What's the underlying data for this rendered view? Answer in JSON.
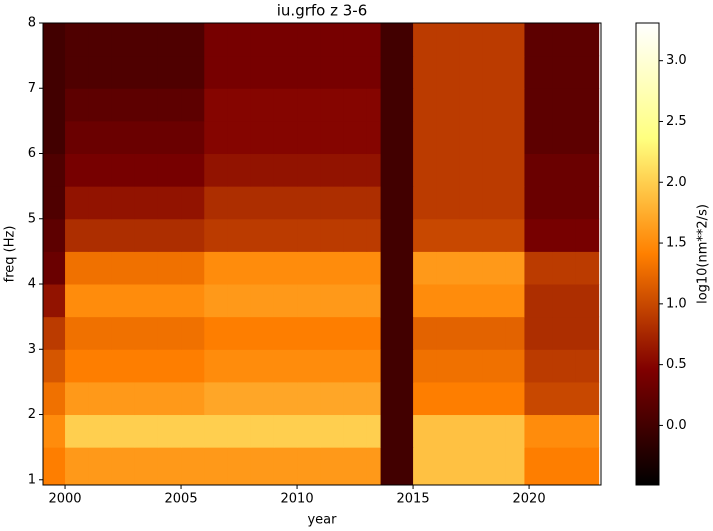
{
  "chart_data": {
    "type": "heatmap",
    "title": "iu.grfo z 3-6",
    "x_label": "year",
    "y_label": "freq (Hz)",
    "colorbar_label": "log10(nm**2/s)",
    "colormap": "afmhot",
    "x_edges": [
      1999,
      2000,
      2001,
      2002,
      2003,
      2004,
      2005,
      2006,
      2007,
      2008,
      2009,
      2010,
      2011,
      2012,
      2013,
      2013.6,
      2015,
      2016,
      2017,
      2018,
      2019,
      2019.8,
      2021,
      2022,
      2023
    ],
    "y_edges": [
      0.92,
      1.5,
      2,
      2.5,
      3,
      3.5,
      4,
      4.5,
      5,
      5.5,
      6,
      6.5,
      7,
      7.5,
      8
    ],
    "z": [
      [
        1.4,
        1.6,
        1.6,
        1.6,
        1.6,
        1.6,
        1.6,
        1.6,
        1.6,
        1.6,
        1.6,
        1.6,
        1.6,
        1.6,
        1.6,
        0.0,
        1.9,
        1.9,
        1.9,
        1.9,
        1.9,
        1.4,
        1.4,
        1.4
      ],
      [
        1.5,
        2.0,
        2.0,
        2.0,
        2.0,
        2.0,
        2.0,
        2.0,
        2.0,
        2.0,
        2.0,
        2.0,
        2.0,
        2.0,
        2.0,
        0.0,
        1.9,
        1.9,
        1.9,
        1.9,
        1.9,
        1.5,
        1.5,
        1.5
      ],
      [
        1.3,
        1.6,
        1.6,
        1.6,
        1.6,
        1.6,
        1.6,
        1.7,
        1.7,
        1.7,
        1.7,
        1.7,
        1.7,
        1.7,
        1.7,
        0.0,
        1.4,
        1.4,
        1.4,
        1.4,
        1.4,
        1.0,
        1.0,
        1.0
      ],
      [
        1.1,
        1.4,
        1.4,
        1.4,
        1.4,
        1.4,
        1.4,
        1.5,
        1.5,
        1.5,
        1.5,
        1.5,
        1.5,
        1.5,
        1.5,
        0.0,
        1.3,
        1.3,
        1.3,
        1.3,
        1.3,
        0.9,
        0.9,
        0.9
      ],
      [
        0.9,
        1.3,
        1.3,
        1.3,
        1.3,
        1.3,
        1.3,
        1.4,
        1.4,
        1.4,
        1.4,
        1.4,
        1.4,
        1.4,
        1.4,
        0.0,
        1.2,
        1.2,
        1.2,
        1.2,
        1.2,
        0.8,
        0.8,
        0.8
      ],
      [
        0.6,
        1.5,
        1.5,
        1.5,
        1.5,
        1.5,
        1.5,
        1.6,
        1.6,
        1.6,
        1.6,
        1.6,
        1.6,
        1.6,
        1.6,
        0.0,
        1.5,
        1.5,
        1.5,
        1.5,
        1.5,
        0.8,
        0.8,
        0.8
      ],
      [
        0.3,
        1.3,
        1.3,
        1.3,
        1.3,
        1.3,
        1.3,
        1.5,
        1.5,
        1.5,
        1.5,
        1.5,
        1.5,
        1.5,
        1.5,
        0.0,
        1.6,
        1.6,
        1.6,
        1.6,
        1.6,
        0.9,
        0.9,
        0.9
      ],
      [
        0.2,
        0.8,
        0.8,
        0.8,
        0.8,
        0.8,
        0.8,
        0.9,
        0.9,
        0.9,
        0.9,
        0.9,
        0.9,
        0.9,
        0.9,
        0.0,
        1.0,
        1.0,
        1.0,
        1.0,
        1.0,
        0.4,
        0.4,
        0.4
      ],
      [
        0.1,
        0.6,
        0.6,
        0.6,
        0.6,
        0.6,
        0.6,
        0.8,
        0.8,
        0.8,
        0.8,
        0.8,
        0.8,
        0.8,
        0.8,
        0.0,
        0.9,
        0.9,
        0.9,
        0.9,
        0.9,
        0.3,
        0.3,
        0.3
      ],
      [
        0.1,
        0.4,
        0.4,
        0.4,
        0.4,
        0.4,
        0.4,
        0.6,
        0.6,
        0.6,
        0.6,
        0.6,
        0.6,
        0.6,
        0.6,
        0.0,
        0.9,
        0.9,
        0.9,
        0.9,
        0.9,
        0.3,
        0.3,
        0.3
      ],
      [
        0.0,
        0.3,
        0.3,
        0.3,
        0.3,
        0.3,
        0.3,
        0.5,
        0.5,
        0.5,
        0.5,
        0.5,
        0.5,
        0.5,
        0.5,
        0.0,
        0.9,
        0.9,
        0.9,
        0.9,
        0.9,
        0.2,
        0.2,
        0.2
      ],
      [
        0.0,
        0.2,
        0.2,
        0.2,
        0.2,
        0.2,
        0.2,
        0.5,
        0.5,
        0.5,
        0.5,
        0.5,
        0.5,
        0.5,
        0.5,
        0.0,
        0.9,
        0.9,
        0.9,
        0.9,
        0.9,
        0.2,
        0.2,
        0.2
      ],
      [
        0.0,
        0.1,
        0.1,
        0.1,
        0.1,
        0.1,
        0.1,
        0.4,
        0.4,
        0.4,
        0.4,
        0.4,
        0.4,
        0.4,
        0.4,
        0.0,
        0.9,
        0.9,
        0.9,
        0.9,
        0.9,
        0.2,
        0.2,
        0.2
      ],
      [
        0.0,
        0.1,
        0.1,
        0.1,
        0.1,
        0.1,
        0.1,
        0.4,
        0.4,
        0.4,
        0.4,
        0.4,
        0.4,
        0.4,
        0.4,
        0.0,
        0.9,
        0.9,
        0.9,
        0.9,
        0.9,
        0.2,
        0.2,
        0.2
      ]
    ],
    "xlim": [
      1999.05,
      2023.1
    ],
    "xticks": [
      2000,
      2005,
      2010,
      2015,
      2020
    ],
    "ylim": [
      0.92,
      8
    ],
    "yticks": [
      1,
      2,
      3,
      4,
      5,
      6,
      7,
      8
    ],
    "clim": [
      -0.49,
      3.31
    ],
    "cticks": [
      {
        "value": 0,
        "label": "0.0"
      },
      0.5,
      {
        "value": 1,
        "label": "1.0"
      },
      1.5,
      {
        "value": 2,
        "label": "2.0"
      },
      2.5,
      {
        "value": 3,
        "label": "3.0"
      }
    ]
  }
}
